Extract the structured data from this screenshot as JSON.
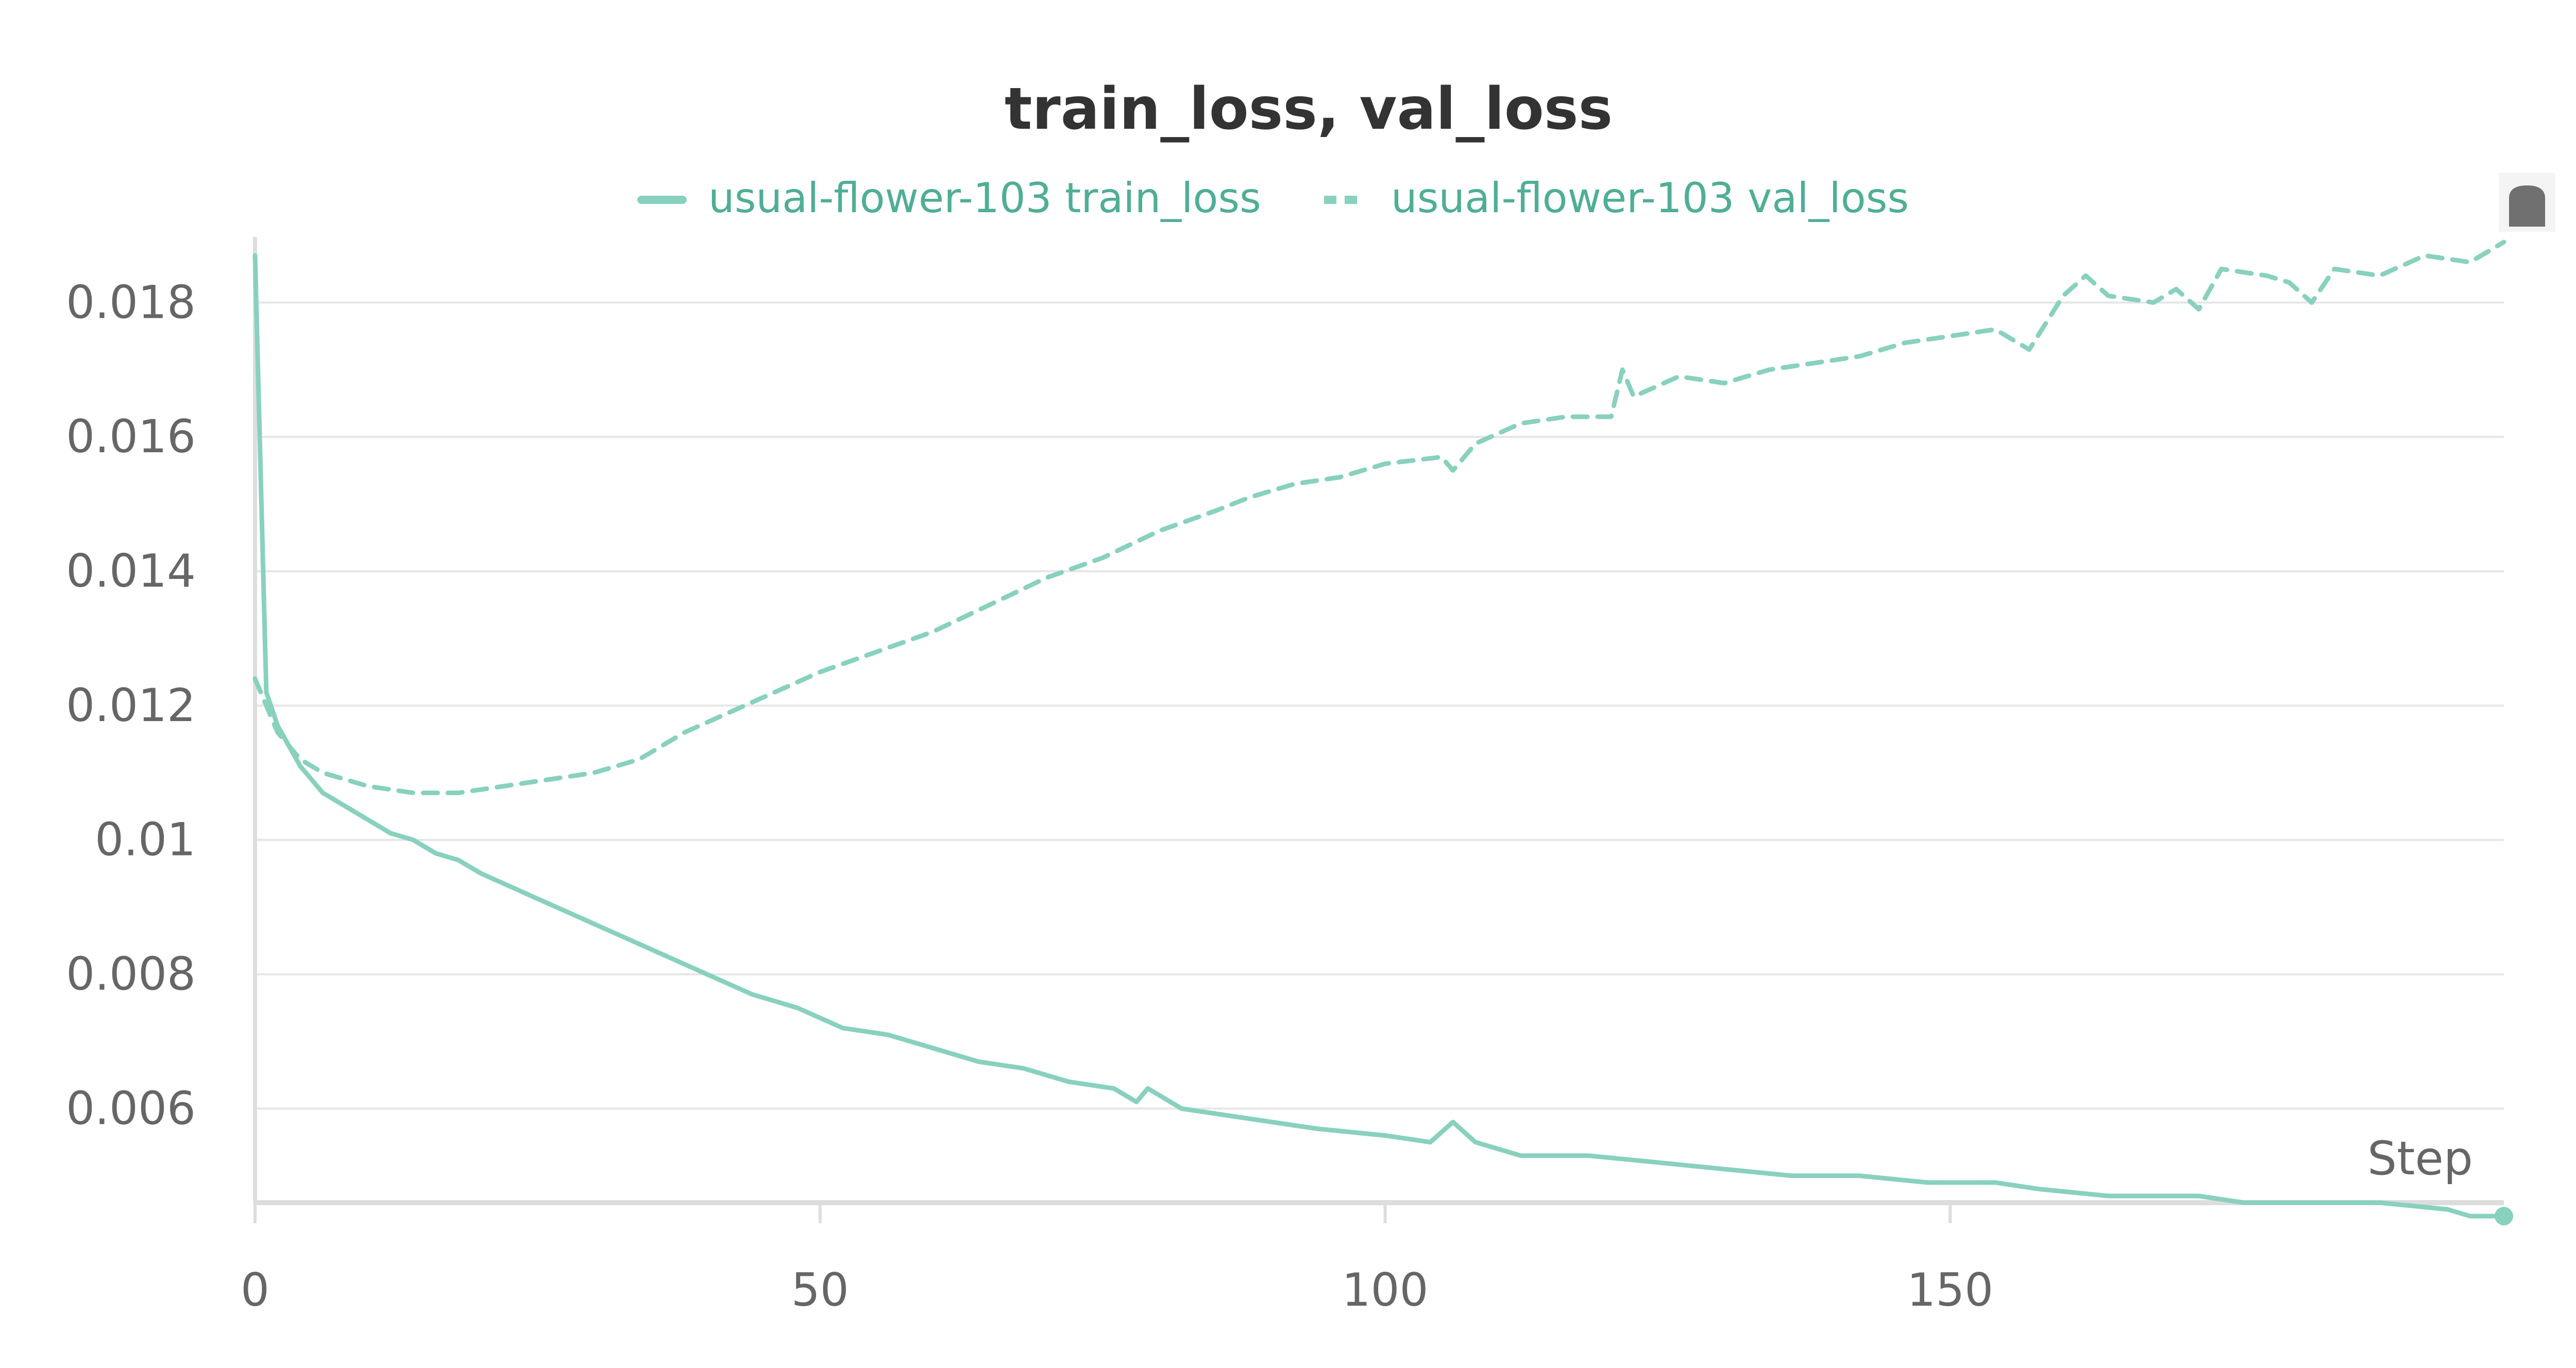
{
  "chart_data": {
    "type": "line",
    "title": "train_loss, val_loss",
    "xlabel": "Step",
    "ylabel": "",
    "xlim": [
      0,
      199
    ],
    "ylim": [
      0.0046,
      0.0189
    ],
    "x_ticks": [
      0,
      50,
      100,
      150
    ],
    "x_tick_labels": [
      "0",
      "50",
      "100",
      "150"
    ],
    "y_ticks": [
      0.006,
      0.008,
      0.01,
      0.012,
      0.014,
      0.016,
      0.018
    ],
    "y_tick_labels": [
      "0.006",
      "0.008",
      "0.01",
      "0.012",
      "0.014",
      "0.016",
      "0.018"
    ],
    "grid": true,
    "legend_position": "top",
    "colors": {
      "line": "#88d1be",
      "legend_text": "#4fae96"
    },
    "series": [
      {
        "name": "usual-flower-103 train_loss",
        "style": "solid",
        "points": [
          [
            0,
            0.0187
          ],
          [
            1,
            0.0122
          ],
          [
            2,
            0.0117
          ],
          [
            3,
            0.0114
          ],
          [
            4,
            0.0111
          ],
          [
            5,
            0.0109
          ],
          [
            6,
            0.0107
          ],
          [
            8,
            0.0105
          ],
          [
            10,
            0.0103
          ],
          [
            12,
            0.0101
          ],
          [
            14,
            0.01
          ],
          [
            16,
            0.0098
          ],
          [
            18,
            0.0097
          ],
          [
            20,
            0.0095
          ],
          [
            24,
            0.0092
          ],
          [
            28,
            0.0089
          ],
          [
            32,
            0.0086
          ],
          [
            36,
            0.0083
          ],
          [
            40,
            0.008
          ],
          [
            44,
            0.0077
          ],
          [
            48,
            0.0075
          ],
          [
            52,
            0.0072
          ],
          [
            56,
            0.0071
          ],
          [
            60,
            0.0069
          ],
          [
            64,
            0.0067
          ],
          [
            68,
            0.0066
          ],
          [
            72,
            0.0064
          ],
          [
            76,
            0.0063
          ],
          [
            78,
            0.0061
          ],
          [
            79,
            0.0063
          ],
          [
            80,
            0.0062
          ],
          [
            82,
            0.006
          ],
          [
            86,
            0.0059
          ],
          [
            90,
            0.0058
          ],
          [
            94,
            0.0057
          ],
          [
            100,
            0.0056
          ],
          [
            104,
            0.0055
          ],
          [
            106,
            0.0058
          ],
          [
            108,
            0.0055
          ],
          [
            112,
            0.0053
          ],
          [
            118,
            0.0053
          ],
          [
            124,
            0.0052
          ],
          [
            130,
            0.0051
          ],
          [
            136,
            0.005
          ],
          [
            142,
            0.005
          ],
          [
            148,
            0.0049
          ],
          [
            154,
            0.0049
          ],
          [
            158,
            0.0048
          ],
          [
            164,
            0.0047
          ],
          [
            170,
            0.0047
          ],
          [
            172,
            0.0047
          ],
          [
            176,
            0.0046
          ],
          [
            182,
            0.0046
          ],
          [
            188,
            0.0046
          ],
          [
            194,
            0.0045
          ],
          [
            196,
            0.0044
          ],
          [
            199,
            0.0044
          ]
        ]
      },
      {
        "name": "usual-flower-103 val_loss",
        "style": "dashed",
        "points": [
          [
            0,
            0.0124
          ],
          [
            1,
            0.012
          ],
          [
            2,
            0.0116
          ],
          [
            4,
            0.0112
          ],
          [
            6,
            0.011
          ],
          [
            8,
            0.0109
          ],
          [
            10,
            0.0108
          ],
          [
            14,
            0.0107
          ],
          [
            18,
            0.0107
          ],
          [
            22,
            0.0108
          ],
          [
            26,
            0.0109
          ],
          [
            30,
            0.011
          ],
          [
            34,
            0.0112
          ],
          [
            38,
            0.0116
          ],
          [
            42,
            0.0119
          ],
          [
            46,
            0.0122
          ],
          [
            50,
            0.0125
          ],
          [
            55,
            0.0128
          ],
          [
            60,
            0.0131
          ],
          [
            65,
            0.0135
          ],
          [
            70,
            0.0139
          ],
          [
            75,
            0.0142
          ],
          [
            80,
            0.0146
          ],
          [
            85,
            0.0149
          ],
          [
            88,
            0.0151
          ],
          [
            92,
            0.0153
          ],
          [
            96,
            0.0154
          ],
          [
            100,
            0.0156
          ],
          [
            105,
            0.0157
          ],
          [
            106,
            0.0155
          ],
          [
            108,
            0.0159
          ],
          [
            112,
            0.0162
          ],
          [
            116,
            0.0163
          ],
          [
            120,
            0.0163
          ],
          [
            121,
            0.017
          ],
          [
            122,
            0.0166
          ],
          [
            126,
            0.0169
          ],
          [
            130,
            0.0168
          ],
          [
            134,
            0.017
          ],
          [
            138,
            0.0171
          ],
          [
            142,
            0.0172
          ],
          [
            146,
            0.0174
          ],
          [
            150,
            0.0175
          ],
          [
            154,
            0.0176
          ],
          [
            157,
            0.0173
          ],
          [
            160,
            0.0181
          ],
          [
            162,
            0.0184
          ],
          [
            164,
            0.0181
          ],
          [
            168,
            0.018
          ],
          [
            170,
            0.0182
          ],
          [
            172,
            0.0179
          ],
          [
            174,
            0.0185
          ],
          [
            178,
            0.0184
          ],
          [
            180,
            0.0183
          ],
          [
            182,
            0.018
          ],
          [
            184,
            0.0185
          ],
          [
            188,
            0.0184
          ],
          [
            192,
            0.0187
          ],
          [
            196,
            0.0186
          ],
          [
            199,
            0.0189
          ]
        ]
      }
    ]
  }
}
